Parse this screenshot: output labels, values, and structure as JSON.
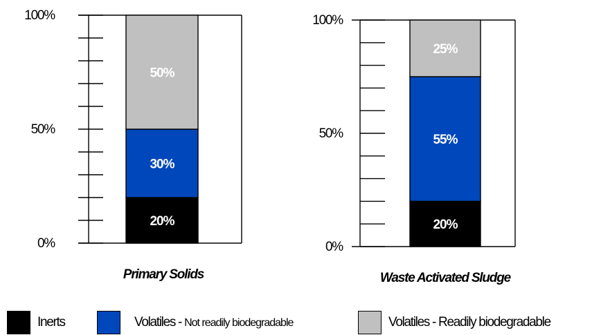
{
  "chart_data": [
    {
      "type": "bar",
      "stacked": true,
      "title": "Primary Solids",
      "categories": [
        "Primary Solids"
      ],
      "yticks": [
        "0%",
        "50%",
        "100%"
      ],
      "ylim": [
        0,
        100
      ],
      "series": [
        {
          "name": "Inerts",
          "values": [
            20
          ],
          "label": "20%"
        },
        {
          "name": "Volatiles - Not readily biodegradable",
          "values": [
            30
          ],
          "label": "30%"
        },
        {
          "name": "Volatiles - Readily biodegradable",
          "values": [
            50
          ],
          "label": "50%"
        }
      ]
    },
    {
      "type": "bar",
      "stacked": true,
      "title": "Waste Activated Sludge",
      "categories": [
        "Waste Activated Sludge"
      ],
      "yticks": [
        "0%",
        "50%",
        "100%"
      ],
      "ylim": [
        0,
        100
      ],
      "series": [
        {
          "name": "Inerts",
          "values": [
            20
          ],
          "label": "20%"
        },
        {
          "name": "Volatiles - Not readily biodegradable",
          "values": [
            55
          ],
          "label": "55%"
        },
        {
          "name": "Volatiles - Readily biodegradable",
          "values": [
            25
          ],
          "label": "25%"
        }
      ]
    }
  ],
  "legend": [
    {
      "main": "Inerts",
      "small": "",
      "color": "#000000"
    },
    {
      "main": "Volatiles - ",
      "small": "Not readily biodegradable",
      "color": "#0047BB"
    },
    {
      "main": "Volatiles - Readily biodegradable",
      "small": "",
      "color": "#C0C0C0"
    }
  ],
  "colors": {
    "inerts": "#000000",
    "not_readily": "#0047BB",
    "readily": "#C0C0C0",
    "label_on_dark": "#FFFFFF",
    "label_on_light": "#FFFFFF"
  }
}
